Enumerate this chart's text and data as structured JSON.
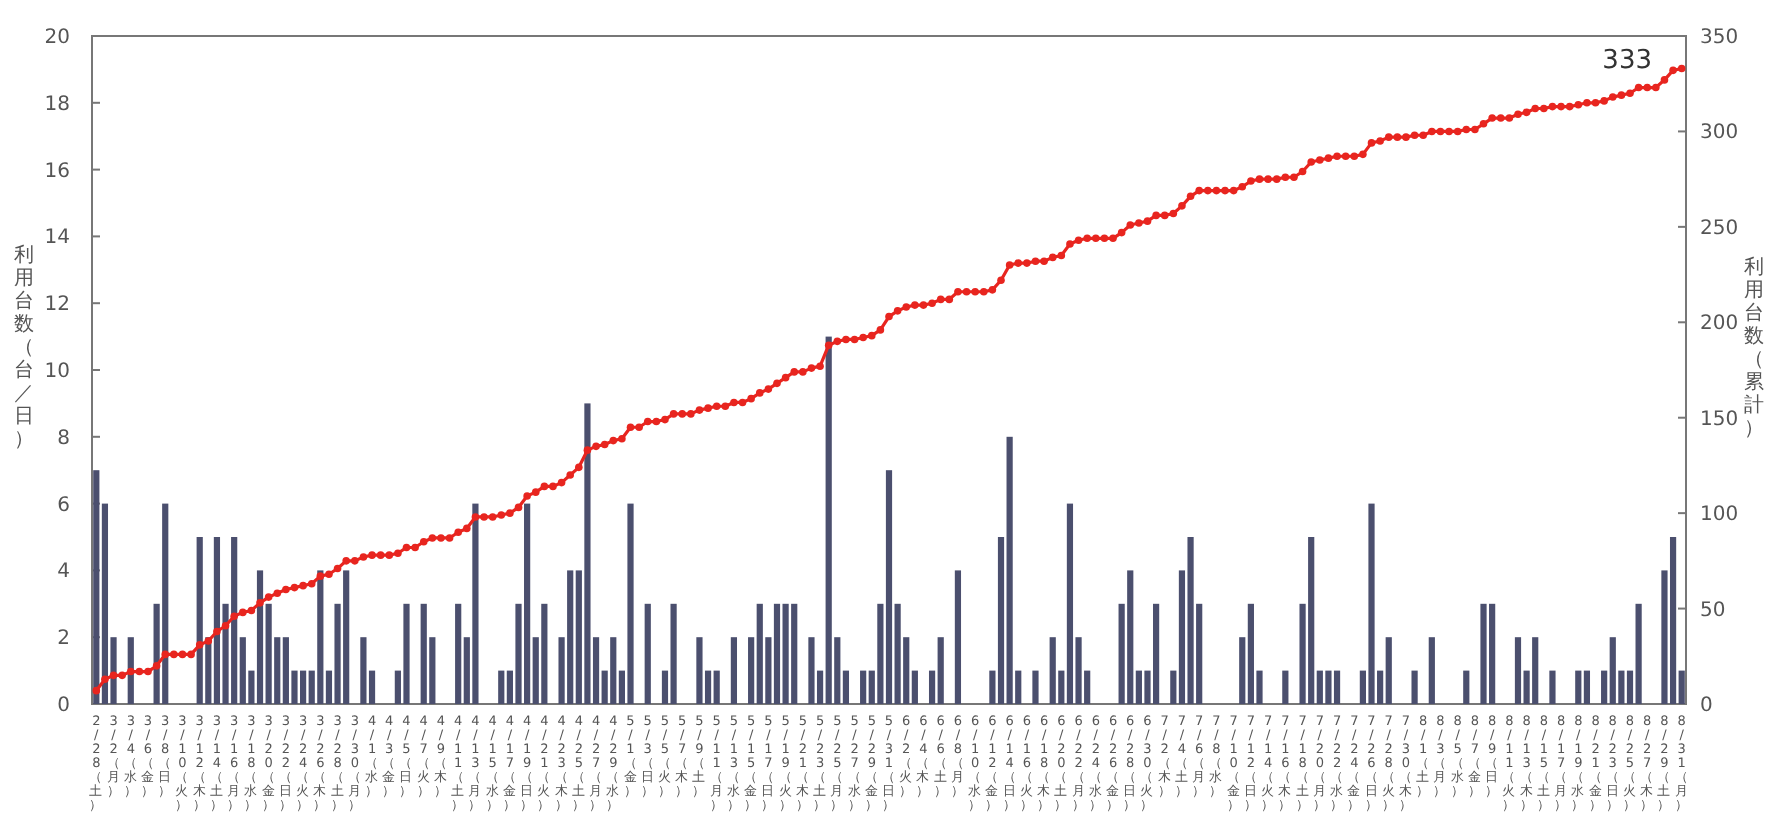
{
  "chart_data": {
    "type": "bar",
    "ylabel": "利用台数（台／日）",
    "y2label": "利用台数（累計）",
    "categories": [
      "2/28（土）",
      null,
      "3/2（月）",
      null,
      "3/4（水）",
      null,
      "3/6（金）",
      null,
      "3/8（日）",
      null,
      "3/10（火）",
      null,
      "3/12（木）",
      null,
      "3/14（土）",
      null,
      "3/16（月）",
      null,
      "3/18（水）",
      null,
      "3/20（金）",
      null,
      "3/22（日）",
      null,
      "3/24（火）",
      null,
      "3/26（木）",
      null,
      "3/28（土）",
      null,
      "3/30（月）",
      null,
      "4/1（水）",
      null,
      "4/3（金）",
      null,
      "4/5（日）",
      null,
      "4/7（火）",
      null,
      "4/9（木）",
      null,
      "4/11（土）",
      null,
      "4/13（月）",
      null,
      "4/15（水）",
      null,
      "4/17（金）",
      null,
      "4/19（日）",
      null,
      "4/21（火）",
      null,
      "4/23（木）",
      null,
      "4/25（土）",
      null,
      "4/27（月）",
      null,
      "4/29（水）",
      null,
      "5/1（金）",
      null,
      "5/3（日）",
      null,
      "5/5（火）",
      null,
      "5/7（木）",
      null,
      "5/9（土）",
      null,
      "5/11（月）",
      null,
      "5/13（水）",
      null,
      "5/15（金）",
      null,
      "5/17（日）",
      null,
      "5/19（火）",
      null,
      "5/21（木）",
      null,
      "5/23（土）",
      null,
      "5/25（月）",
      null,
      "5/27（水）",
      null,
      "5/29（金）",
      null,
      "5/31（日）",
      null,
      "6/2（火）",
      null,
      "6/4（木）",
      null,
      "6/6（土）",
      null,
      "6/8（月）",
      null,
      "6/10（水）",
      null,
      "6/12（金）",
      null,
      "6/14（日）",
      null,
      "6/16（火）",
      null,
      "6/18（木）",
      null,
      "6/20（土）",
      null,
      "6/22（月）",
      null,
      "6/24（水）",
      null,
      "6/26（金）",
      null,
      "6/28（日）",
      null,
      "6/30（火）",
      null,
      "7/2（木）",
      null,
      "7/4（土）",
      null,
      "7/6（月）",
      null,
      "7/8（水）",
      null,
      "7/10（金）",
      null,
      "7/12（日）",
      null,
      "7/14（火）",
      null,
      "7/16（木）",
      null,
      "7/18（土）",
      null,
      "7/20（月）",
      null,
      "7/22（水）",
      null,
      "7/24（金）",
      null,
      "7/26（日）",
      null,
      "7/28（火）",
      null,
      "7/30（木）",
      null,
      "8/1（土）",
      null,
      "8/3（月）",
      null,
      "8/5（水）",
      null,
      "8/7（金）",
      null,
      "8/9（日）",
      null,
      "8/11（火）",
      null,
      "8/13（木）",
      null,
      "8/15（土）",
      null,
      "8/17（月）",
      null,
      "8/19（水）",
      null,
      "8/21（金）",
      null,
      "8/23（日）",
      null,
      "8/25（火）",
      null,
      "8/27（木）",
      null,
      "8/29（土）",
      null,
      "8/31（月）"
    ],
    "series": [
      {
        "color": "#4b4f6e",
        "values": [
          7,
          6,
          2,
          0,
          2,
          0,
          0,
          3,
          6,
          0,
          0,
          0,
          5,
          2,
          5,
          3,
          5,
          2,
          1,
          4,
          3,
          2,
          2,
          1,
          1,
          1,
          4,
          1,
          3,
          4,
          0,
          2,
          1,
          0,
          0,
          1,
          3,
          0,
          3,
          2,
          0,
          0,
          3,
          2,
          6,
          0,
          0,
          1,
          1,
          3,
          6,
          2,
          3,
          0,
          2,
          4,
          4,
          9,
          2,
          1,
          2,
          1,
          6,
          0,
          3,
          0,
          1,
          3,
          0,
          0,
          2,
          1,
          1,
          0,
          2,
          0,
          2,
          3,
          2,
          3,
          3,
          3,
          0,
          2,
          1,
          11,
          2,
          1,
          0,
          1,
          1,
          3,
          7,
          3,
          2,
          1,
          0,
          1,
          2,
          0,
          4,
          0,
          0,
          0,
          1,
          5,
          8,
          1,
          0,
          1,
          0,
          2,
          1,
          6,
          2,
          1,
          0,
          0,
          0,
          3,
          4,
          1,
          1,
          3,
          0,
          1,
          4,
          5,
          3,
          0,
          0,
          0,
          0,
          2,
          3,
          1,
          0,
          0,
          1,
          0,
          3,
          5,
          1,
          1,
          1,
          0,
          0,
          1,
          6,
          1,
          2,
          0,
          0,
          1,
          0,
          2,
          0,
          0,
          0,
          1,
          0,
          3,
          3,
          0,
          0,
          2,
          1,
          2,
          0,
          1,
          0,
          0,
          1,
          1,
          0,
          1,
          2,
          1,
          1,
          3,
          0,
          0,
          4,
          5,
          1
        ]
      },
      {
        "type": "line",
        "axis": "y2",
        "color": "#e8251f",
        "marker": "circle",
        "values": [
          7,
          13,
          15,
          15,
          17,
          17,
          17,
          20,
          26,
          26,
          26,
          26,
          31,
          33,
          38,
          41,
          46,
          48,
          49,
          53,
          56,
          58,
          60,
          61,
          62,
          63,
          67,
          68,
          71,
          75,
          75,
          77,
          78,
          78,
          78,
          79,
          82,
          82,
          85,
          87,
          87,
          87,
          90,
          92,
          98,
          98,
          98,
          99,
          100,
          103,
          109,
          111,
          114,
          114,
          116,
          120,
          124,
          133,
          135,
          136,
          138,
          139,
          145,
          145,
          148,
          148,
          149,
          152,
          152,
          152,
          154,
          155,
          156,
          156,
          158,
          158,
          160,
          163,
          165,
          168,
          171,
          174,
          174,
          176,
          177,
          188,
          190,
          191,
          191,
          192,
          193,
          196,
          203,
          206,
          208,
          209,
          209,
          210,
          212,
          212,
          216,
          216,
          216,
          216,
          217,
          222,
          230,
          231,
          231,
          232,
          232,
          234,
          235,
          241,
          243,
          244,
          244,
          244,
          244,
          247,
          251,
          252,
          253,
          256,
          256,
          257,
          261,
          266,
          269,
          269,
          269,
          269,
          269,
          271,
          274,
          275,
          275,
          275,
          276,
          276,
          279,
          284,
          285,
          286,
          287,
          287,
          287,
          288,
          294,
          295,
          297,
          297,
          297,
          298,
          298,
          300,
          300,
          300,
          300,
          301,
          301,
          304,
          307,
          307,
          307,
          309,
          310,
          312,
          312,
          313,
          313,
          313,
          314,
          315,
          315,
          316,
          318,
          319,
          320,
          323,
          323,
          323,
          327,
          332,
          333
        ]
      }
    ],
    "ylim": [
      0,
      20
    ],
    "yticks": [
      0,
      2,
      4,
      6,
      8,
      10,
      12,
      14,
      16,
      18,
      20
    ],
    "y2lim": [
      0,
      350
    ],
    "y2ticks": [
      0,
      50,
      100,
      150,
      200,
      250,
      300,
      350
    ],
    "annotations": [
      "333"
    ]
  }
}
